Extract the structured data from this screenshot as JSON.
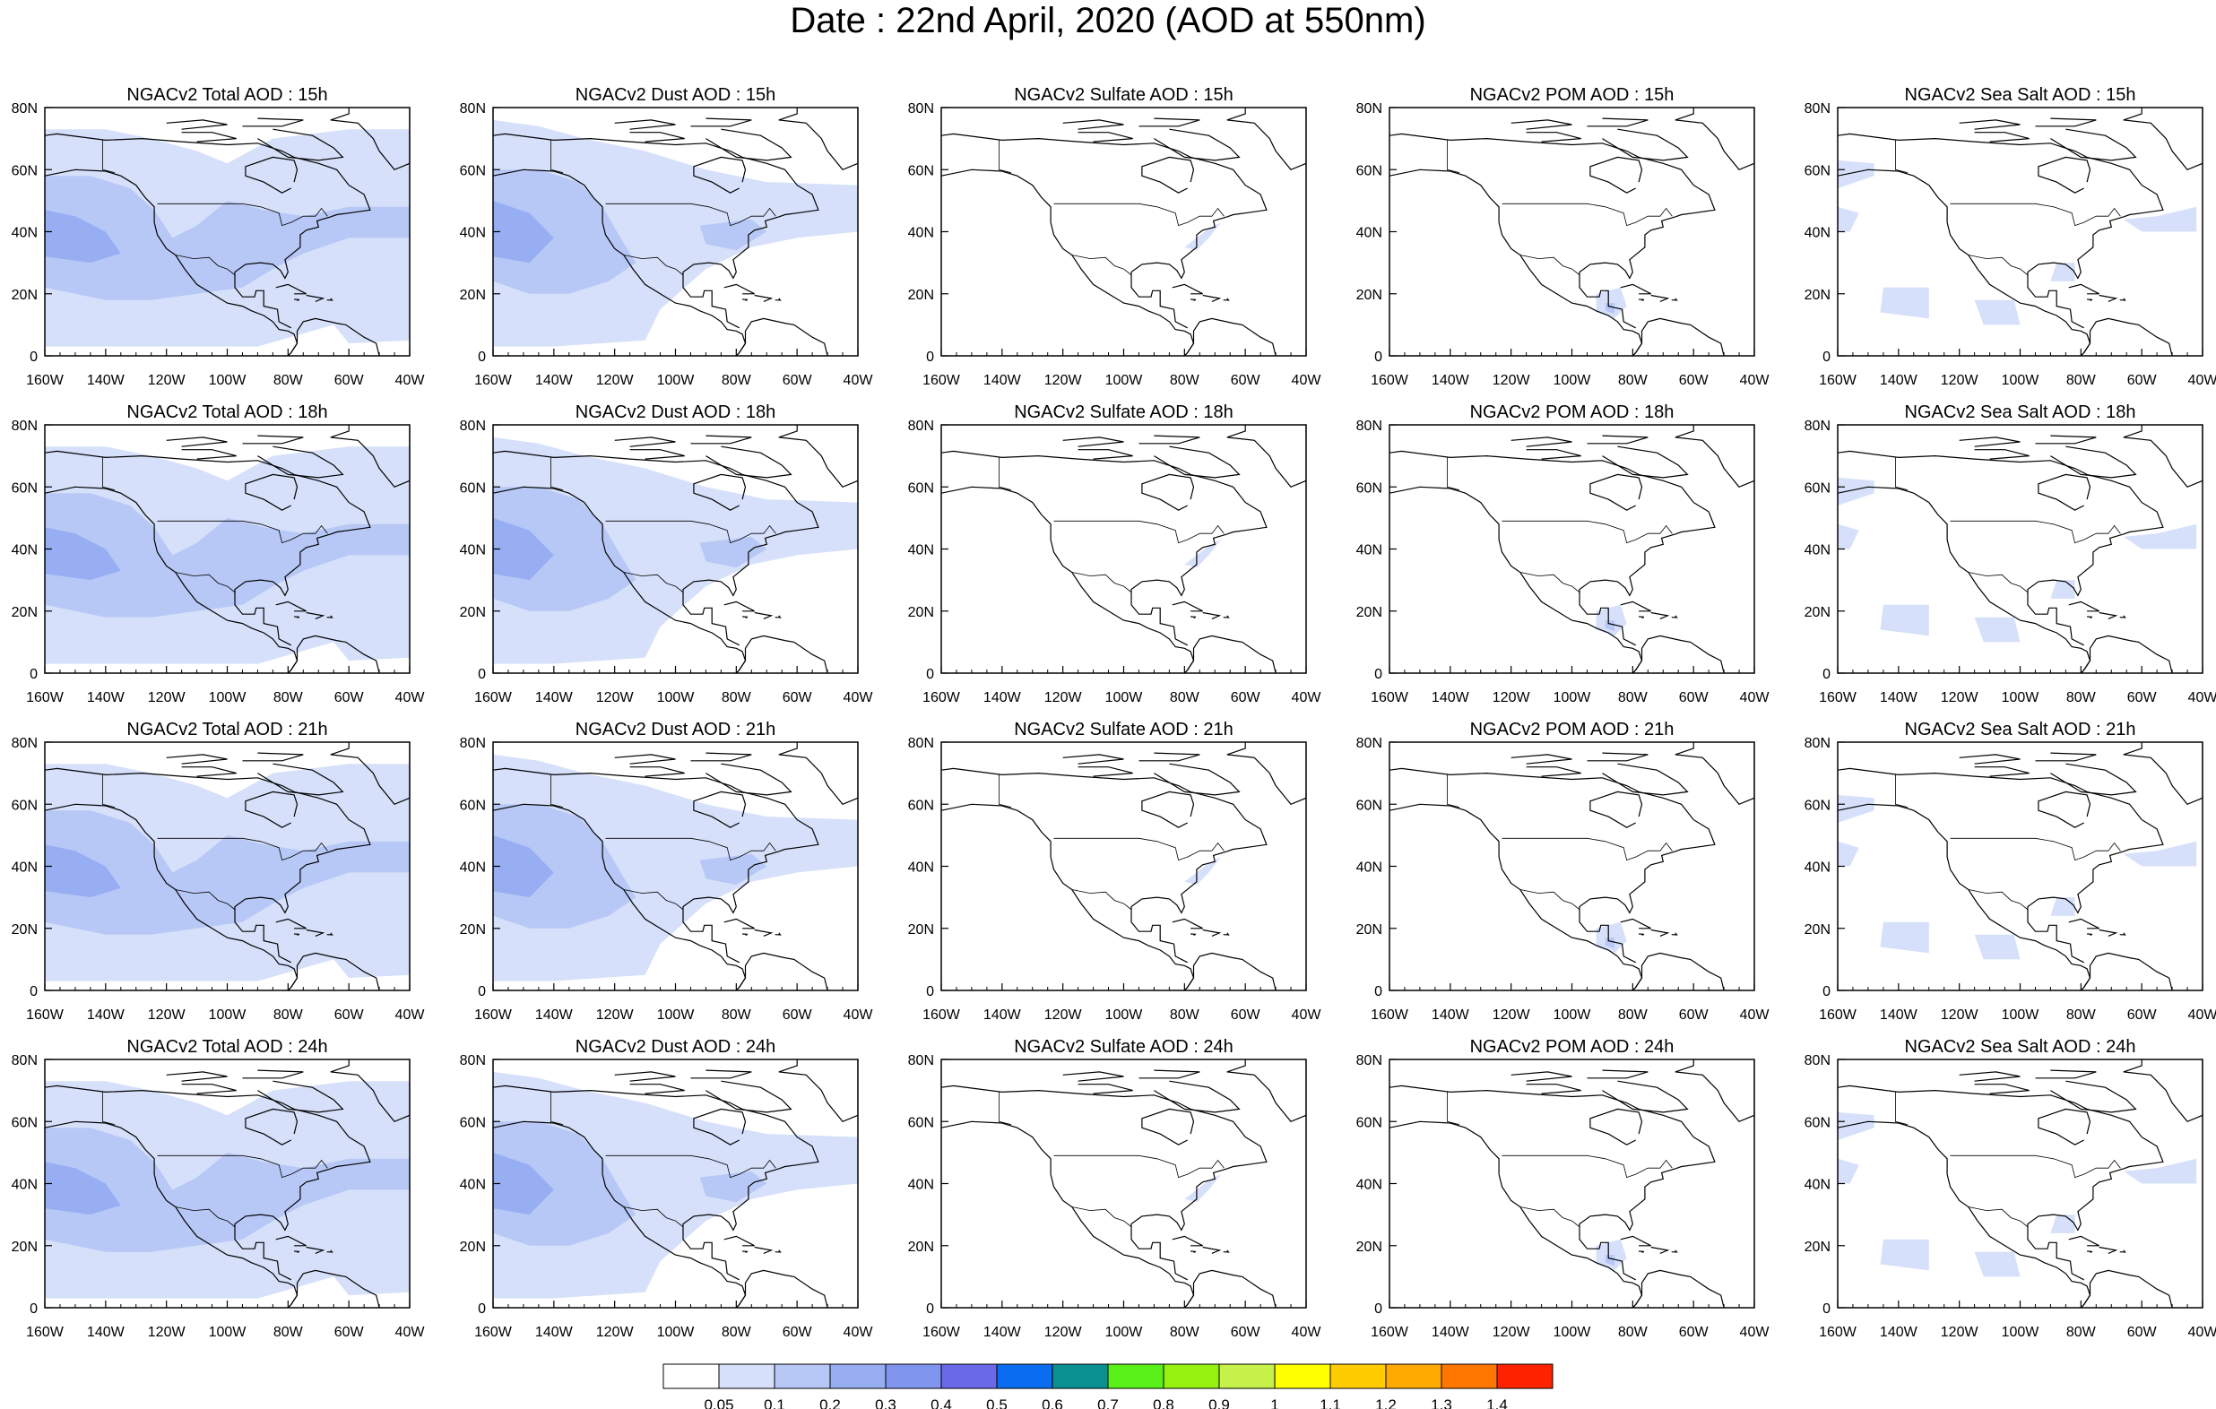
{
  "title": "Date : 22nd April, 2020 (AOD at 550nm)",
  "axes": {
    "x_ticks": [
      "160W",
      "140W",
      "120W",
      "100W",
      "80W",
      "60W",
      "40W"
    ],
    "y_ticks": [
      "80N",
      "60N",
      "40N",
      "20N",
      "0"
    ]
  },
  "panel_titles": [
    [
      "NGACv2 Total AOD : 15h",
      "NGACv2 Dust AOD : 15h",
      "NGACv2 Sulfate AOD : 15h",
      "NGACv2 POM AOD : 15h",
      "NGACv2 Sea Salt AOD : 15h"
    ],
    [
      "NGACv2 Total AOD : 18h",
      "NGACv2 Dust AOD : 18h",
      "NGACv2 Sulfate AOD : 18h",
      "NGACv2 POM AOD : 18h",
      "NGACv2 Sea Salt AOD : 18h"
    ],
    [
      "NGACv2 Total AOD : 21h",
      "NGACv2 Dust AOD : 21h",
      "NGACv2 Sulfate AOD : 21h",
      "NGACv2 POM AOD : 21h",
      "NGACv2 Sea Salt AOD : 21h"
    ],
    [
      "NGACv2 Total AOD : 24h",
      "NGACv2 Dust AOD : 24h",
      "NGACv2 Sulfate AOD : 24h",
      "NGACv2 POM AOD : 24h",
      "NGACv2 Sea Salt  AOD : 24h"
    ]
  ],
  "species": [
    "total",
    "dust",
    "sulfate",
    "pom",
    "seasalt"
  ],
  "colorbar": {
    "colors": [
      "#ffffff",
      "#d6e0fa",
      "#b8c8f6",
      "#98aef2",
      "#8095ee",
      "#6a6ae8",
      "#0a6cf0",
      "#0a9090",
      "#58f018",
      "#96f010",
      "#c6f04a",
      "#ffff00",
      "#ffcc00",
      "#ffaa00",
      "#ff7700",
      "#ff2200"
    ],
    "labels": [
      "0.05",
      "0.1",
      "0.2",
      "0.3",
      "0.4",
      "0.5",
      "0.6",
      "0.7",
      "0.8",
      "0.9",
      "1",
      "1.1",
      "1.2",
      "1.3",
      "1.4"
    ]
  }
}
